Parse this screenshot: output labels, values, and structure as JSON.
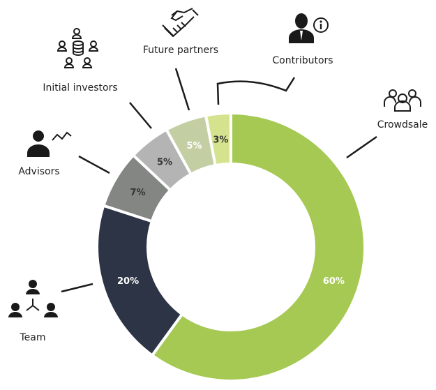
{
  "chart_data": {
    "type": "pie",
    "donut": true,
    "categories": [
      "Crowdsale",
      "Team",
      "Advisors",
      "Initial investors",
      "Future partners",
      "Contributors"
    ],
    "values": [
      60,
      20,
      7,
      5,
      5,
      3
    ],
    "data_labels": [
      "60%",
      "20%",
      "7%",
      "5%",
      "5%",
      "3%"
    ],
    "colors": [
      "#a5c953",
      "#2c3446",
      "#848684",
      "#b4b4b4",
      "#c3cfa3",
      "#d5e38e"
    ],
    "label_colors": [
      "#ffffff",
      "#ffffff",
      "#333333",
      "#333333",
      "#ffffff",
      "#333333"
    ],
    "start": "top",
    "direction": "clockwise",
    "legend": "none",
    "icons": [
      "people-group-icon",
      "team-hierarchy-icon",
      "advisor-chart-icon",
      "investors-coins-icon",
      "handshake-icon",
      "contributor-info-icon"
    ]
  }
}
